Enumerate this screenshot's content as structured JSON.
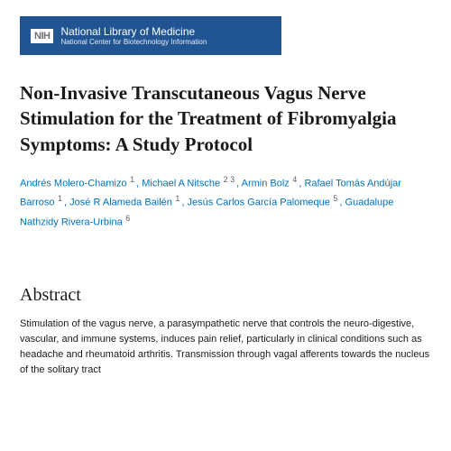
{
  "banner": {
    "logo_text": "NIH",
    "title": "National Library of Medicine",
    "subtitle": "National Center for Biotechnology Information",
    "bg_color": "#205493",
    "text_color": "#ffffff"
  },
  "article": {
    "title": "Non-Invasive Transcutaneous Vagus Nerve Stimulation for the Treatment of Fibromyalgia Symptoms: A Study Protocol",
    "title_fontsize": 21,
    "title_color": "#1a1a1a",
    "authors": [
      {
        "name": "Andrés Molero-Chamizo",
        "affil": "1"
      },
      {
        "name": "Michael A Nitsche",
        "affil": "2 3"
      },
      {
        "name": "Armin Bolz",
        "affil": "4"
      },
      {
        "name": "Rafael Tomás Andújar Barroso",
        "affil": "1"
      },
      {
        "name": "José R Alameda Bailén",
        "affil": "1"
      },
      {
        "name": "Jesús Carlos García Palomeque",
        "affil": "5"
      },
      {
        "name": "Guadalupe Nathzidy Rivera-Urbina",
        "affil": "6"
      }
    ],
    "author_link_color": "#0071bc",
    "author_sup_color": "#5b616b"
  },
  "abstract": {
    "heading": "Abstract",
    "body": "Stimulation of the vagus nerve, a parasympathetic nerve that controls the neuro-digestive, vascular, and immune systems, induces pain relief, particularly in clinical conditions such as headache and rheumatoid arthritis. Transmission through vagal afferents towards the nucleus of the solitary tract",
    "heading_fontsize": 20,
    "body_fontsize": 11
  }
}
